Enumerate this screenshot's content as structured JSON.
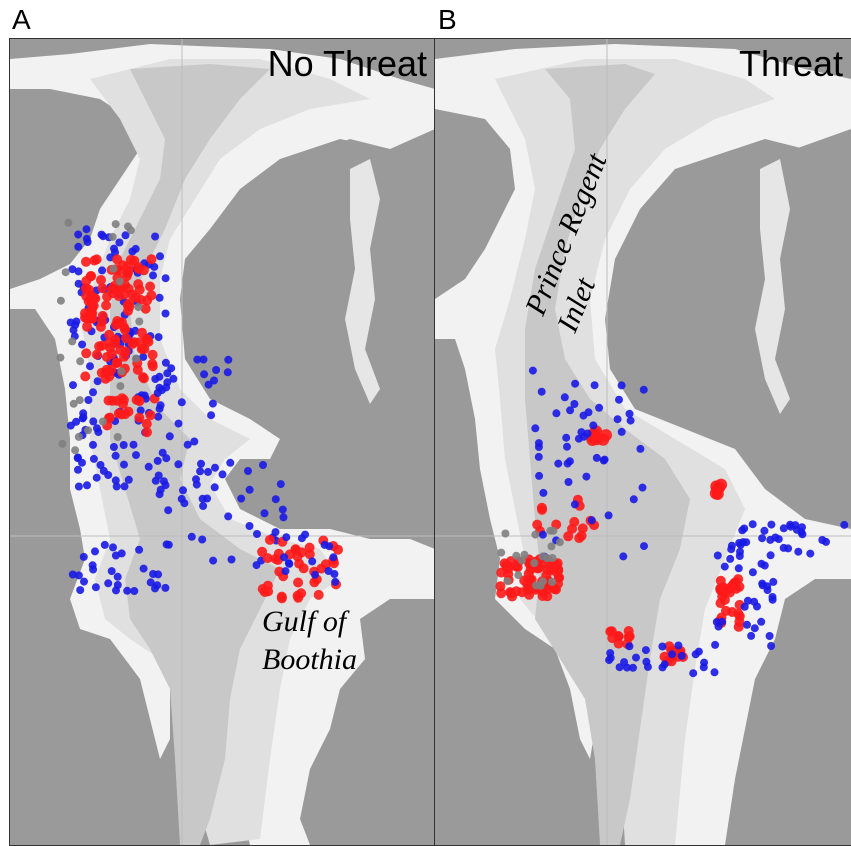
{
  "panels": [
    {
      "letter": "A",
      "title": "No Threat"
    },
    {
      "letter": "B",
      "title": "Threat"
    }
  ],
  "labels": {
    "gulf_line1": "Gulf of",
    "gulf_line2": "Boothia",
    "inlet_line1": "Prince Regent",
    "inlet_line2": "Inlet"
  },
  "colors": {
    "land": "#9a9a9a",
    "sea_shallow": "#f2f2f2",
    "sea_mid": "#e0e0e0",
    "sea_deep": "#c8c8c8",
    "point_blue": "#1a1ae6",
    "point_red": "#ff1a1a",
    "point_grey": "#808080"
  }
}
